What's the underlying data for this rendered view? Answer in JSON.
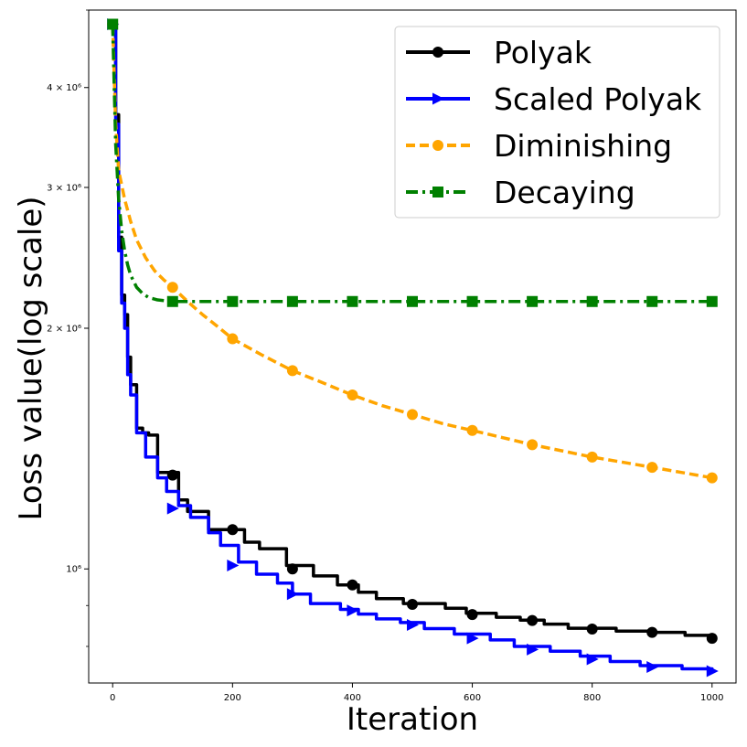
{
  "chart_data": {
    "type": "line",
    "xlabel": "Iteration",
    "ylabel": "Loss value(log scale)",
    "xlim": [
      -40,
      1040
    ],
    "ylim": [
      720000,
      5000000
    ],
    "yscale": "log",
    "xticks": [
      0,
      200,
      400,
      600,
      800,
      1000
    ],
    "yticks": [
      {
        "value": 1000000,
        "label": "10⁶"
      },
      {
        "value": 2000000,
        "label": "2 × 10⁶"
      },
      {
        "value": 3000000,
        "label": "3 × 10⁶"
      },
      {
        "value": 4000000,
        "label": "4 × 10⁶"
      }
    ],
    "grid": false,
    "legend_position": "top-right",
    "series": [
      {
        "name": "Polyak",
        "color": "#000000",
        "style": "solid",
        "marker": "circle",
        "markers": [
          [
            0,
            4800000
          ],
          [
            100,
            1310000
          ],
          [
            200,
            1120000
          ],
          [
            300,
            1000000
          ],
          [
            400,
            955000
          ],
          [
            500,
            903000
          ],
          [
            600,
            877000
          ],
          [
            700,
            862000
          ],
          [
            800,
            841000
          ],
          [
            900,
            833000
          ],
          [
            1000,
            819000
          ]
        ],
        "steps": [
          [
            0,
            4800000
          ],
          [
            5,
            3700000
          ],
          [
            10,
            2600000
          ],
          [
            15,
            2200000
          ],
          [
            20,
            2080000
          ],
          [
            25,
            1840000
          ],
          [
            30,
            1700000
          ],
          [
            40,
            1500000
          ],
          [
            50,
            1480000
          ],
          [
            60,
            1470000
          ],
          [
            75,
            1320000
          ],
          [
            110,
            1220000
          ],
          [
            125,
            1180000
          ],
          [
            160,
            1120000
          ],
          [
            220,
            1080000
          ],
          [
            245,
            1060000
          ],
          [
            290,
            1010000
          ],
          [
            335,
            980000
          ],
          [
            375,
            955000
          ],
          [
            410,
            935000
          ],
          [
            440,
            918000
          ],
          [
            485,
            905000
          ],
          [
            555,
            893000
          ],
          [
            590,
            880000
          ],
          [
            640,
            870000
          ],
          [
            680,
            863000
          ],
          [
            720,
            853000
          ],
          [
            760,
            843000
          ],
          [
            840,
            836000
          ],
          [
            895,
            833000
          ],
          [
            955,
            826000
          ],
          [
            1000,
            819000
          ]
        ]
      },
      {
        "name": "Scaled Polyak",
        "color": "#0000ff",
        "style": "solid",
        "marker": "triangle-right",
        "markers": [
          [
            0,
            4800000
          ],
          [
            100,
            1190000
          ],
          [
            200,
            1010000
          ],
          [
            300,
            930000
          ],
          [
            400,
            887000
          ],
          [
            500,
            851000
          ],
          [
            600,
            819000
          ],
          [
            700,
            793000
          ],
          [
            800,
            771000
          ],
          [
            900,
            754000
          ],
          [
            1000,
            745000
          ]
        ],
        "steps": [
          [
            0,
            4800000
          ],
          [
            5,
            3600000
          ],
          [
            10,
            2500000
          ],
          [
            15,
            2150000
          ],
          [
            20,
            2000000
          ],
          [
            25,
            1750000
          ],
          [
            30,
            1650000
          ],
          [
            40,
            1480000
          ],
          [
            55,
            1380000
          ],
          [
            75,
            1300000
          ],
          [
            90,
            1250000
          ],
          [
            110,
            1200000
          ],
          [
            130,
            1160000
          ],
          [
            160,
            1110000
          ],
          [
            180,
            1070000
          ],
          [
            210,
            1020000
          ],
          [
            240,
            985000
          ],
          [
            275,
            960000
          ],
          [
            300,
            930000
          ],
          [
            330,
            905000
          ],
          [
            380,
            890000
          ],
          [
            410,
            878000
          ],
          [
            440,
            866000
          ],
          [
            480,
            857000
          ],
          [
            520,
            842000
          ],
          [
            570,
            829000
          ],
          [
            630,
            815000
          ],
          [
            670,
            800000
          ],
          [
            730,
            789000
          ],
          [
            780,
            778000
          ],
          [
            830,
            766000
          ],
          [
            880,
            757000
          ],
          [
            950,
            750000
          ],
          [
            1000,
            745000
          ]
        ]
      },
      {
        "name": "Diminishing",
        "color": "#ffa500",
        "style": "dashed",
        "marker": "circle",
        "markers": [
          [
            0,
            4800000
          ],
          [
            100,
            2250000
          ],
          [
            200,
            1940000
          ],
          [
            300,
            1770000
          ],
          [
            400,
            1650000
          ],
          [
            500,
            1560000
          ],
          [
            600,
            1490000
          ],
          [
            700,
            1430000
          ],
          [
            800,
            1380000
          ],
          [
            900,
            1340000
          ],
          [
            1000,
            1300000
          ]
        ],
        "curve": [
          [
            0,
            4800000
          ],
          [
            5,
            3600000
          ],
          [
            10,
            3150000
          ],
          [
            20,
            2900000
          ],
          [
            30,
            2720000
          ],
          [
            40,
            2580000
          ],
          [
            55,
            2450000
          ],
          [
            70,
            2360000
          ],
          [
            85,
            2300000
          ],
          [
            100,
            2250000
          ],
          [
            125,
            2160000
          ],
          [
            150,
            2080000
          ],
          [
            175,
            2010000
          ],
          [
            200,
            1940000
          ],
          [
            250,
            1850000
          ],
          [
            300,
            1770000
          ],
          [
            350,
            1710000
          ],
          [
            400,
            1650000
          ],
          [
            450,
            1600000
          ],
          [
            500,
            1560000
          ],
          [
            550,
            1520000
          ],
          [
            600,
            1490000
          ],
          [
            650,
            1460000
          ],
          [
            700,
            1430000
          ],
          [
            750,
            1405000
          ],
          [
            800,
            1380000
          ],
          [
            850,
            1360000
          ],
          [
            900,
            1340000
          ],
          [
            950,
            1320000
          ],
          [
            1000,
            1300000
          ]
        ]
      },
      {
        "name": "Decaying",
        "color": "#008000",
        "style": "dashdot",
        "marker": "square",
        "markers": [
          [
            0,
            4800000
          ],
          [
            100,
            2160000
          ],
          [
            200,
            2160000
          ],
          [
            300,
            2160000
          ],
          [
            400,
            2160000
          ],
          [
            500,
            2160000
          ],
          [
            600,
            2160000
          ],
          [
            700,
            2160000
          ],
          [
            800,
            2160000
          ],
          [
            900,
            2160000
          ],
          [
            1000,
            2160000
          ]
        ],
        "curve": [
          [
            0,
            4800000
          ],
          [
            5,
            3400000
          ],
          [
            10,
            2900000
          ],
          [
            15,
            2650000
          ],
          [
            20,
            2500000
          ],
          [
            25,
            2400000
          ],
          [
            30,
            2330000
          ],
          [
            40,
            2250000
          ],
          [
            50,
            2210000
          ],
          [
            60,
            2185000
          ],
          [
            75,
            2170000
          ],
          [
            100,
            2160000
          ],
          [
            1000,
            2160000
          ]
        ]
      }
    ]
  }
}
